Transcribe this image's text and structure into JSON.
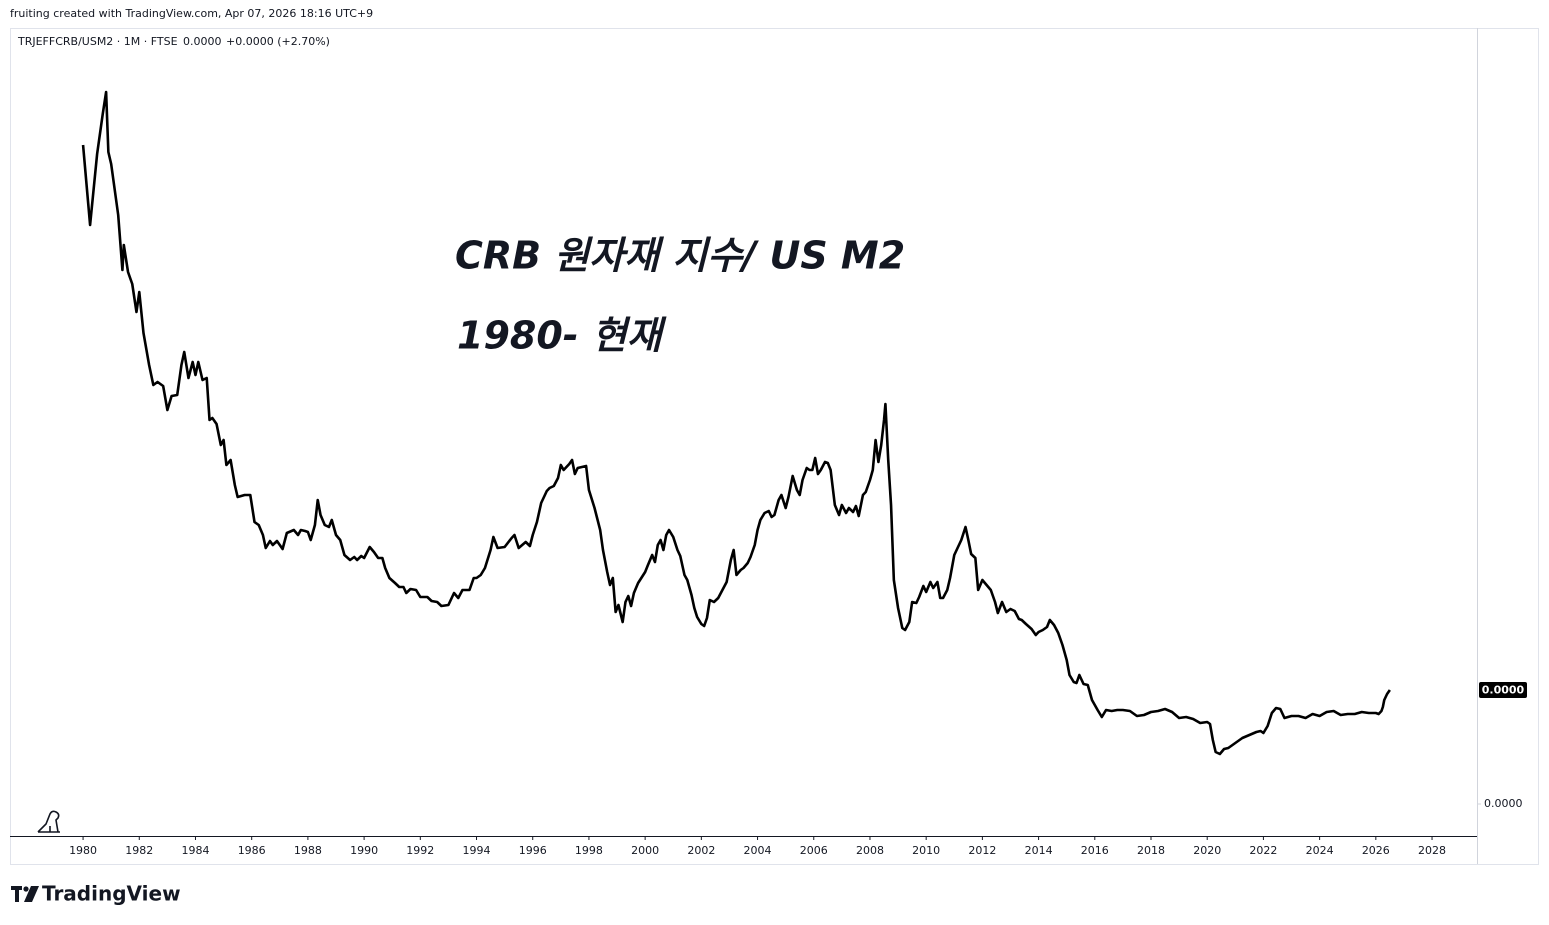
{
  "header": {
    "caption": "fruiting created with TradingView.com, Apr 07, 2026 18:16 UTC+9"
  },
  "footer": {
    "brand": "TradingView"
  },
  "chart_data": {
    "type": "line",
    "symbol": "TRJEFFCRB/USM2 · 1M · FTSE",
    "last_price": "0.0000",
    "change": "+0.0000 (+2.70%)",
    "annotations": [
      "CRB 원자재 지수/ US M2",
      "1980- 현재"
    ],
    "color": "#000000",
    "grid": false,
    "xlim": [
      1977.4,
      2029.6
    ],
    "xticks": [
      1980,
      1982,
      1984,
      1986,
      1988,
      1990,
      1992,
      1994,
      1996,
      1998,
      2000,
      2002,
      2004,
      2006,
      2008,
      2010,
      2012,
      2014,
      2016,
      2018,
      2020,
      2022,
      2024,
      2026,
      2028
    ],
    "ylim": [
      -3.2e-12,
      7.76e-11
    ],
    "yticks": [
      {
        "value": 0,
        "label": "0.0000"
      }
    ],
    "last_value_label": {
      "value": 1.14e-11,
      "label": "0.0000"
    },
    "x": [
      1980.0,
      1980.25,
      1980.5,
      1980.7,
      1980.82,
      1980.9,
      1981.0,
      1981.25,
      1981.4,
      1981.45,
      1981.6,
      1981.75,
      1981.9,
      1982.0,
      1982.15,
      1982.35,
      1982.5,
      1982.65,
      1982.85,
      1983.0,
      1983.15,
      1983.35,
      1983.5,
      1983.6,
      1983.75,
      1983.9,
      1984.0,
      1984.1,
      1984.25,
      1984.4,
      1984.5,
      1984.6,
      1984.75,
      1984.9,
      1985.0,
      1985.1,
      1985.25,
      1985.4,
      1985.5,
      1985.75,
      1985.95,
      1986.1,
      1986.25,
      1986.4,
      1986.5,
      1986.65,
      1986.75,
      1986.9,
      1987.0,
      1987.1,
      1987.25,
      1987.5,
      1987.65,
      1987.75,
      1987.9,
      1988.0,
      1988.1,
      1988.25,
      1988.35,
      1988.45,
      1988.6,
      1988.75,
      1988.85,
      1989.0,
      1989.15,
      1989.3,
      1989.5,
      1989.65,
      1989.75,
      1989.9,
      1990.0,
      1990.2,
      1990.35,
      1990.5,
      1990.65,
      1990.75,
      1990.9,
      1991.1,
      1991.25,
      1991.4,
      1991.5,
      1991.65,
      1991.85,
      1992.0,
      1992.25,
      1992.4,
      1992.6,
      1992.75,
      1993.0,
      1993.2,
      1993.35,
      1993.5,
      1993.75,
      1993.9,
      1994.0,
      1994.15,
      1994.3,
      1994.5,
      1994.6,
      1994.75,
      1995.0,
      1995.25,
      1995.35,
      1995.5,
      1995.75,
      1995.9,
      1996.0,
      1996.15,
      1996.3,
      1996.5,
      1996.6,
      1996.75,
      1996.9,
      1997.0,
      1997.1,
      1997.3,
      1997.4,
      1997.5,
      1997.6,
      1997.75,
      1997.9,
      1998.0,
      1998.2,
      1998.4,
      1998.5,
      1998.65,
      1998.75,
      1998.85,
      1998.95,
      1999.05,
      1999.2,
      1999.3,
      1999.4,
      1999.5,
      1999.6,
      1999.75,
      2000.0,
      2000.1,
      2000.25,
      2000.35,
      2000.45,
      2000.55,
      2000.65,
      2000.75,
      2000.85,
      2001.0,
      2001.15,
      2001.25,
      2001.4,
      2001.5,
      2001.65,
      2001.75,
      2001.85,
      2002.0,
      2002.1,
      2002.2,
      2002.3,
      2002.45,
      2002.6,
      2002.75,
      2002.9,
      2003.05,
      2003.15,
      2003.25,
      2003.4,
      2003.5,
      2003.65,
      2003.75,
      2003.9,
      2004.0,
      2004.1,
      2004.25,
      2004.4,
      2004.5,
      2004.6,
      2004.75,
      2004.85,
      2005.0,
      2005.1,
      2005.25,
      2005.4,
      2005.5,
      2005.6,
      2005.75,
      2005.85,
      2005.95,
      2006.05,
      2006.15,
      2006.25,
      2006.4,
      2006.5,
      2006.6,
      2006.75,
      2006.9,
      2007.0,
      2007.15,
      2007.25,
      2007.4,
      2007.5,
      2007.6,
      2007.75,
      2007.85,
      2008.0,
      2008.1,
      2008.2,
      2008.3,
      2008.4,
      2008.5,
      2008.55,
      2008.65,
      2008.75,
      2008.85,
      2009.0,
      2009.15,
      2009.25,
      2009.4,
      2009.5,
      2009.65,
      2009.75,
      2009.9,
      2010.0,
      2010.15,
      2010.25,
      2010.4,
      2010.5,
      2010.6,
      2010.75,
      2010.85,
      2011.0,
      2011.15,
      2011.25,
      2011.4,
      2011.5,
      2011.6,
      2011.75,
      2011.85,
      2012.0,
      2012.15,
      2012.3,
      2012.45,
      2012.55,
      2012.7,
      2012.85,
      2013.0,
      2013.15,
      2013.3,
      2013.4,
      2013.55,
      2013.75,
      2013.9,
      2014.0,
      2014.15,
      2014.3,
      2014.4,
      2014.55,
      2014.7,
      2014.85,
      2015.0,
      2015.1,
      2015.25,
      2015.35,
      2015.45,
      2015.6,
      2015.75,
      2015.9,
      2016.1,
      2016.25,
      2016.4,
      2016.6,
      2016.8,
      2017.0,
      2017.25,
      2017.5,
      2017.75,
      2018.0,
      2018.25,
      2018.5,
      2018.75,
      2019.0,
      2019.25,
      2019.5,
      2019.75,
      2020.0,
      2020.1,
      2020.2,
      2020.3,
      2020.45,
      2020.6,
      2020.75,
      2021.0,
      2021.25,
      2021.5,
      2021.75,
      2021.9,
      2022.0,
      2022.15,
      2022.3,
      2022.45,
      2022.6,
      2022.75,
      2023.0,
      2023.25,
      2023.5,
      2023.75,
      2024.0,
      2024.25,
      2024.5,
      2024.75,
      2025.0,
      2025.25,
      2025.5,
      2025.75,
      2026.0,
      2026.1,
      2026.2,
      2026.25,
      2026.3,
      2026.4,
      2026.5
    ],
    "values": [
      6.59e-11,
      5.79e-11,
      6.5e-11,
      6.9e-11,
      7.12e-11,
      6.52e-11,
      6.4e-11,
      5.89e-11,
      5.34e-11,
      5.59e-11,
      5.32e-11,
      5.2e-11,
      4.92e-11,
      5.12e-11,
      4.71e-11,
      4.39e-11,
      4.19e-11,
      4.22e-11,
      4.18e-11,
      3.94e-11,
      4.08e-11,
      4.09e-11,
      4.39e-11,
      4.52e-11,
      4.26e-11,
      4.42e-11,
      4.29e-11,
      4.42e-11,
      4.24e-11,
      4.26e-11,
      3.84e-11,
      3.86e-11,
      3.8e-11,
      3.59e-11,
      3.64e-11,
      3.39e-11,
      3.44e-11,
      3.19e-11,
      3.07e-11,
      3.09e-11,
      3.09e-11,
      2.82e-11,
      2.79e-11,
      2.69e-11,
      2.56e-11,
      2.63e-11,
      2.59e-11,
      2.63e-11,
      2.59e-11,
      2.55e-11,
      2.71e-11,
      2.74e-11,
      2.69e-11,
      2.74e-11,
      2.73e-11,
      2.72e-11,
      2.64e-11,
      2.79e-11,
      3.04e-11,
      2.89e-11,
      2.79e-11,
      2.77e-11,
      2.84e-11,
      2.69e-11,
      2.64e-11,
      2.49e-11,
      2.44e-11,
      2.47e-11,
      2.44e-11,
      2.48e-11,
      2.46e-11,
      2.57e-11,
      2.52e-11,
      2.46e-11,
      2.46e-11,
      2.36e-11,
      2.26e-11,
      2.21e-11,
      2.17e-11,
      2.17e-11,
      2.11e-11,
      2.15e-11,
      2.14e-11,
      2.07e-11,
      2.07e-11,
      2.03e-11,
      2.02e-11,
      1.98e-11,
      1.99e-11,
      2.11e-11,
      2.06e-11,
      2.14e-11,
      2.14e-11,
      2.26e-11,
      2.26e-11,
      2.29e-11,
      2.36e-11,
      2.54e-11,
      2.67e-11,
      2.56e-11,
      2.57e-11,
      2.66e-11,
      2.69e-11,
      2.56e-11,
      2.62e-11,
      2.58e-11,
      2.69e-11,
      2.82e-11,
      3.01e-11,
      3.13e-11,
      3.16e-11,
      3.18e-11,
      3.26e-11,
      3.39e-11,
      3.34e-11,
      3.4e-11,
      3.44e-11,
      3.3e-11,
      3.36e-11,
      3.37e-11,
      3.38e-11,
      3.14e-11,
      2.96e-11,
      2.74e-11,
      2.54e-11,
      2.32e-11,
      2.19e-11,
      2.26e-11,
      1.92e-11,
      1.99e-11,
      1.82e-11,
      2.02e-11,
      2.08e-11,
      1.98e-11,
      2.11e-11,
      2.21e-11,
      2.32e-11,
      2.39e-11,
      2.49e-11,
      2.42e-11,
      2.59e-11,
      2.64e-11,
      2.54e-11,
      2.69e-11,
      2.74e-11,
      2.67e-11,
      2.54e-11,
      2.48e-11,
      2.29e-11,
      2.24e-11,
      2.09e-11,
      1.96e-11,
      1.87e-11,
      1.8e-11,
      1.78e-11,
      1.86e-11,
      2.04e-11,
      2.02e-11,
      2.06e-11,
      2.14e-11,
      2.22e-11,
      2.44e-11,
      2.54e-11,
      2.29e-11,
      2.34e-11,
      2.36e-11,
      2.41e-11,
      2.47e-11,
      2.59e-11,
      2.74e-11,
      2.84e-11,
      2.91e-11,
      2.93e-11,
      2.87e-11,
      2.89e-11,
      3.04e-11,
      3.09e-11,
      2.96e-11,
      3.07e-11,
      3.28e-11,
      3.14e-11,
      3.09e-11,
      3.24e-11,
      3.36e-11,
      3.34e-11,
      3.34e-11,
      3.46e-11,
      3.3e-11,
      3.34e-11,
      3.42e-11,
      3.41e-11,
      3.34e-11,
      2.99e-11,
      2.89e-11,
      2.99e-11,
      2.91e-11,
      2.96e-11,
      2.92e-11,
      2.98e-11,
      2.88e-11,
      3.09e-11,
      3.12e-11,
      3.24e-11,
      3.34e-11,
      3.64e-11,
      3.42e-11,
      3.59e-11,
      3.84e-11,
      4e-11,
      3.44e-11,
      2.99e-11,
      2.24e-11,
      1.96e-11,
      1.76e-11,
      1.74e-11,
      1.82e-11,
      2.02e-11,
      2.01e-11,
      2.07e-11,
      2.18e-11,
      2.12e-11,
      2.22e-11,
      2.16e-11,
      2.22e-11,
      2.06e-11,
      2.06e-11,
      2.14e-11,
      2.26e-11,
      2.49e-11,
      2.58e-11,
      2.64e-11,
      2.77e-11,
      2.64e-11,
      2.5e-11,
      2.46e-11,
      2.14e-11,
      2.24e-11,
      2.19e-11,
      2.14e-11,
      2.02e-11,
      1.91e-11,
      2.02e-11,
      1.92e-11,
      1.95e-11,
      1.93e-11,
      1.85e-11,
      1.84e-11,
      1.8e-11,
      1.75e-11,
      1.69e-11,
      1.72e-11,
      1.74e-11,
      1.77e-11,
      1.84e-11,
      1.79e-11,
      1.71e-11,
      1.59e-11,
      1.44e-11,
      1.29e-11,
      1.22e-11,
      1.21e-11,
      1.29e-11,
      1.2e-11,
      1.19e-11,
      1.04e-11,
      9.4e-12,
      8.7e-12,
      9.4e-12,
      9.3e-12,
      9.4e-12,
      9.4e-12,
      9.3e-12,
      8.8e-12,
      8.9e-12,
      9.2e-12,
      9.3e-12,
      9.5e-12,
      9.2e-12,
      8.6e-12,
      8.7e-12,
      8.5e-12,
      8.1e-12,
      8.2e-12,
      8e-12,
      6.4e-12,
      5.2e-12,
      5e-12,
      5.5e-12,
      5.6e-12,
      6.1e-12,
      6.6e-12,
      6.9e-12,
      7.2e-12,
      7.3e-12,
      7.1e-12,
      7.8e-12,
      9.1e-12,
      9.6e-12,
      9.5e-12,
      8.6e-12,
      8.8e-12,
      8.8e-12,
      8.6e-12,
      9e-12,
      8.8e-12,
      9.2e-12,
      9.3e-12,
      8.9e-12,
      9e-12,
      9e-12,
      9.2e-12,
      9.1e-12,
      9.1e-12,
      9e-12,
      9.3e-12,
      9.7e-12,
      1.04e-11,
      1.1e-11,
      1.14e-11
    ]
  }
}
